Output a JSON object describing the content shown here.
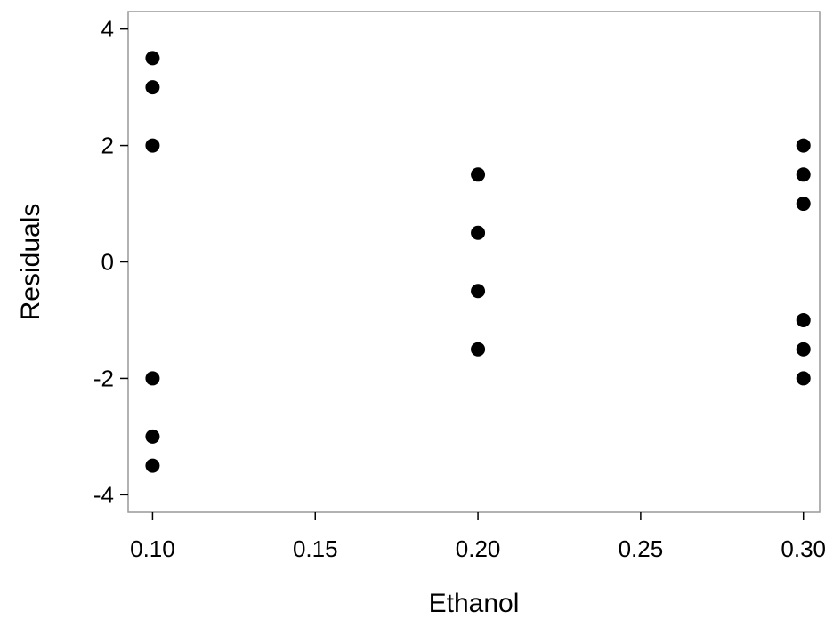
{
  "chart_data": {
    "type": "scatter",
    "title": "",
    "xlabel": "Ethanol",
    "ylabel": "Residuals",
    "xlim": [
      0.0925,
      0.305
    ],
    "ylim": [
      -4.3,
      4.3
    ],
    "x_ticks": [
      0.1,
      0.15,
      0.2,
      0.25,
      0.3
    ],
    "x_tick_labels": [
      "0.10",
      "0.15",
      "0.20",
      "0.25",
      "0.30"
    ],
    "y_ticks": [
      -4,
      -2,
      0,
      2,
      4
    ],
    "y_tick_labels": [
      "-4",
      "-2",
      "0",
      "2",
      "4"
    ],
    "grid": false,
    "legend": "none",
    "marker_color": "#000000",
    "frame_color": "#999999",
    "points": [
      {
        "x": 0.1,
        "y": 3.5
      },
      {
        "x": 0.1,
        "y": 3.0
      },
      {
        "x": 0.1,
        "y": 2.0
      },
      {
        "x": 0.1,
        "y": -2.0
      },
      {
        "x": 0.1,
        "y": -3.0
      },
      {
        "x": 0.1,
        "y": -3.5
      },
      {
        "x": 0.2,
        "y": 1.5
      },
      {
        "x": 0.2,
        "y": 0.5
      },
      {
        "x": 0.2,
        "y": -0.5
      },
      {
        "x": 0.2,
        "y": -1.5
      },
      {
        "x": 0.3,
        "y": 2.0
      },
      {
        "x": 0.3,
        "y": 1.5
      },
      {
        "x": 0.3,
        "y": 1.0
      },
      {
        "x": 0.3,
        "y": -1.0
      },
      {
        "x": 0.3,
        "y": -1.5
      },
      {
        "x": 0.3,
        "y": -2.0
      }
    ]
  }
}
